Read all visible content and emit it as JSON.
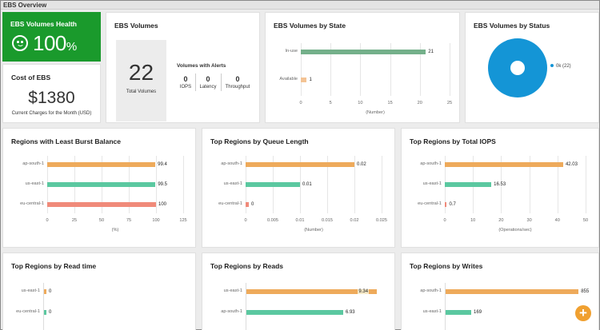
{
  "page": {
    "title": "EBS Overview"
  },
  "colors": {
    "health_bg": "#1a9a2c",
    "orange": "#eeaa5b",
    "teal": "#5bc8a0",
    "green_bar": "#74b08a",
    "light_orange": "#f3c394",
    "red": "#f08a7a",
    "donut": "#1495d6",
    "fab": "#f0a030"
  },
  "health": {
    "title": "EBS Volumes Health",
    "value": "100",
    "unit": "%",
    "icon": "smiley-icon"
  },
  "cost": {
    "title": "Cost of EBS",
    "value": "$1380",
    "caption": "Current Charges for the Month (USD)"
  },
  "volumes": {
    "title": "EBS Volumes",
    "total": "22",
    "total_label": "Total Volumes",
    "alerts_title": "Volumes with Alerts",
    "alerts": [
      {
        "value": "0",
        "label": "IOPS"
      },
      {
        "value": "0",
        "label": "Latency"
      },
      {
        "value": "0",
        "label": "Throughput"
      }
    ]
  },
  "status": {
    "title": "EBS Volumes by Status",
    "legend": "0k (22)"
  },
  "fab": {
    "label": "+"
  },
  "chart_data": [
    {
      "id": "state",
      "type": "bar",
      "title": "EBS Volumes by State",
      "xlabel": "(Number)",
      "categories": [
        "In-use",
        "Available"
      ],
      "values": [
        21,
        1
      ],
      "value_labels": [
        "21",
        "1"
      ],
      "colors": [
        "#74b08a",
        "#f3c394"
      ],
      "xlim": [
        0,
        25
      ],
      "ticks": [
        0,
        5,
        10,
        15,
        20,
        25
      ],
      "tick_labels": [
        "0",
        "5",
        "10",
        "15",
        "20",
        "25"
      ]
    },
    {
      "id": "burst",
      "type": "bar",
      "title": "Regions with Least Burst Balance",
      "xlabel": "(%)",
      "categories": [
        "ap-south-1",
        "us-east-1",
        "eu-central-1"
      ],
      "values": [
        99.4,
        99.5,
        100
      ],
      "value_labels": [
        "99.4",
        "99.5",
        "100"
      ],
      "colors": [
        "#eeaa5b",
        "#5bc8a0",
        "#f08a7a"
      ],
      "xlim": [
        0,
        125
      ],
      "ticks": [
        0,
        25,
        50,
        75,
        100,
        125
      ],
      "tick_labels": [
        "0",
        "25",
        "50",
        "75",
        "100",
        "125"
      ]
    },
    {
      "id": "queue",
      "type": "bar",
      "title": "Top Regions by Queue Length",
      "xlabel": "(Number)",
      "categories": [
        "ap-south-1",
        "us-east-1",
        "eu-central-1"
      ],
      "values": [
        0.02,
        0.01,
        0
      ],
      "value_labels": [
        "0.02",
        "0.01",
        "0"
      ],
      "colors": [
        "#eeaa5b",
        "#5bc8a0",
        "#f08a7a"
      ],
      "xlim": [
        0,
        0.025
      ],
      "ticks": [
        0,
        0.005,
        0.01,
        0.015,
        0.02,
        0.025
      ],
      "tick_labels": [
        "0",
        "0.005",
        "0.01",
        "0.015",
        "0.02",
        "0.025"
      ]
    },
    {
      "id": "iops",
      "type": "bar",
      "title": "Top Regions by Total IOPS",
      "xlabel": "(Operations/sec)",
      "categories": [
        "ap-south-1",
        "us-east-1",
        "eu-central-1"
      ],
      "values": [
        42.03,
        16.53,
        0.7
      ],
      "value_labels": [
        "42.03",
        "16.53",
        "0.7"
      ],
      "colors": [
        "#eeaa5b",
        "#5bc8a0",
        "#f08a7a"
      ],
      "xlim": [
        0,
        50
      ],
      "ticks": [
        0,
        10,
        20,
        30,
        40,
        50
      ],
      "tick_labels": [
        "0",
        "10",
        "20",
        "30",
        "40",
        "50"
      ]
    },
    {
      "id": "readtime",
      "type": "bar",
      "title": "Top Regions by Read time",
      "categories": [
        "us-east-1",
        "eu-central-1"
      ],
      "values": [
        0,
        0
      ],
      "value_labels": [
        "0",
        "0"
      ],
      "colors": [
        "#eeaa5b",
        "#5bc8a0"
      ],
      "xlim": [
        0,
        1
      ]
    },
    {
      "id": "reads",
      "type": "bar",
      "title": "Top Regions by Reads",
      "categories": [
        "us-east-1",
        "ap-south-1"
      ],
      "values": [
        9.34,
        6.93
      ],
      "value_labels": [
        "9.34",
        "6.93"
      ],
      "colors": [
        "#eeaa5b",
        "#5bc8a0"
      ],
      "xlim": [
        0,
        10
      ]
    },
    {
      "id": "writes",
      "type": "bar",
      "title": "Top Regions by Writes",
      "categories": [
        "ap-south-1",
        "us-east-1"
      ],
      "values": [
        855,
        169
      ],
      "value_labels": [
        "855",
        "169"
      ],
      "colors": [
        "#eeaa5b",
        "#5bc8a0"
      ],
      "xlim": [
        0,
        900
      ]
    }
  ]
}
